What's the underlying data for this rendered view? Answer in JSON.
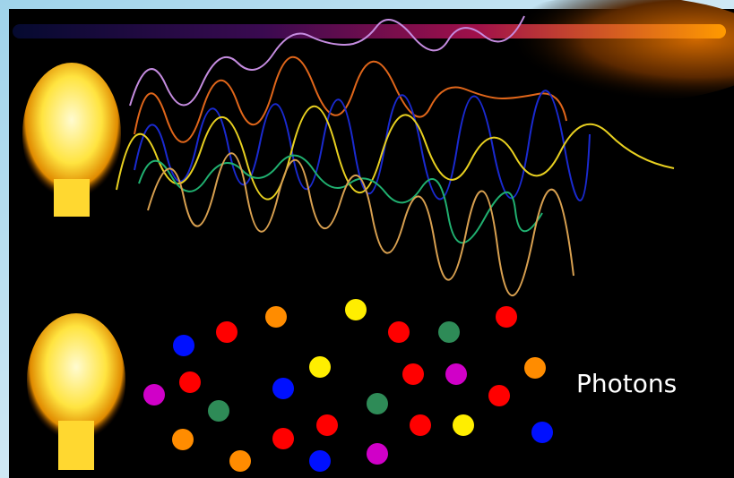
{
  "label": "Photons"
}
